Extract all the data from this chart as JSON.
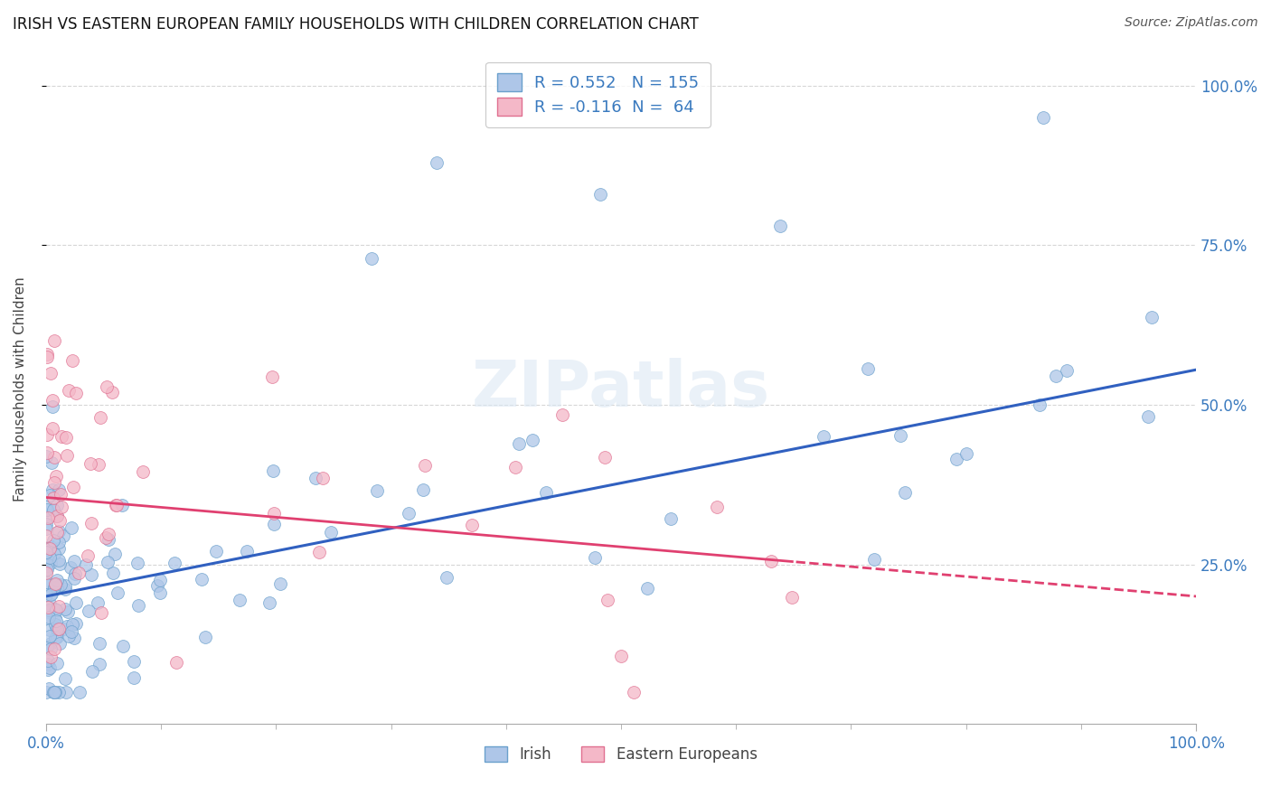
{
  "title": "IRISH VS EASTERN EUROPEAN FAMILY HOUSEHOLDS WITH CHILDREN CORRELATION CHART",
  "source": "Source: ZipAtlas.com",
  "ylabel": "Family Households with Children",
  "irish_color": "#aec6e8",
  "irish_edge": "#6aa0cc",
  "eastern_color": "#f4b8c8",
  "eastern_edge": "#e07090",
  "line_irish_color": "#3060c0",
  "line_eastern_color": "#e04070",
  "watermark": "ZIPatlas",
  "title_fontsize": 12,
  "source_fontsize": 10,
  "legend_fontsize": 13,
  "marker_size": 100,
  "ylim_min": 0.0,
  "ylim_max": 1.05,
  "xlim_min": 0.0,
  "xlim_max": 1.0,
  "ytick_positions": [
    0.25,
    0.5,
    0.75,
    1.0
  ],
  "ytick_labels": [
    "25.0%",
    "50.0%",
    "75.0%",
    "100.0%"
  ],
  "xtick_positions": [
    0.0,
    1.0
  ],
  "xtick_labels": [
    "0.0%",
    "100.0%"
  ],
  "grid_color": "#cccccc",
  "grid_alpha": 0.8
}
